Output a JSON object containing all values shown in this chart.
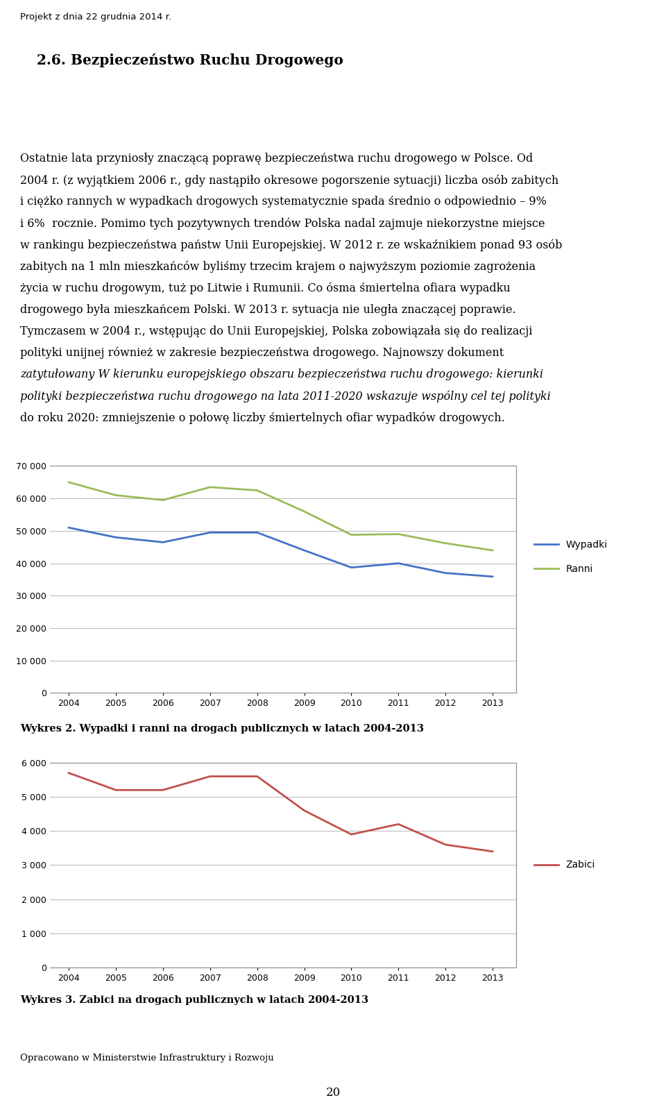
{
  "years": [
    2004,
    2005,
    2006,
    2007,
    2008,
    2009,
    2010,
    2011,
    2012,
    2013
  ],
  "wypadki": [
    51000,
    48000,
    46500,
    49500,
    49500,
    44000,
    38700,
    40000,
    37000,
    35900
  ],
  "ranni": [
    65000,
    61000,
    59500,
    63500,
    62500,
    56000,
    48800,
    49000,
    46200,
    44000
  ],
  "zabici": [
    5700,
    5200,
    5200,
    5600,
    5600,
    4600,
    3900,
    4200,
    3600,
    3400
  ],
  "wypadki_color": "#4472C4",
  "ranni_color": "#9BBB59",
  "zabici_color": "#C0504D",
  "chart1_ylim": [
    0,
    70000
  ],
  "chart1_yticks": [
    0,
    10000,
    20000,
    30000,
    40000,
    50000,
    60000,
    70000
  ],
  "chart2_ylim": [
    0,
    6000
  ],
  "chart2_yticks": [
    0,
    1000,
    2000,
    3000,
    4000,
    5000,
    6000
  ],
  "chart1_caption": "Wykres 2. Wypadki i ranni na drogach publicznych w latach 2004-2013",
  "chart2_caption": "Wykres 3. Zabici na drogach publicznych w latach 2004-2013",
  "header": "Projekt z dnia 22 grudnia 2014 r.",
  "section_title": "2.6. Bezpieczeństwo Ruchu Drogowego",
  "footer": "Opracowano w Ministerstwie Infrastruktury i Rozwoju",
  "page_number": "20",
  "line_width": 2.0,
  "text_fontsize": 11.5,
  "title_fontsize": 14.5,
  "header_fontsize": 9.5,
  "caption_fontsize": 10.5
}
